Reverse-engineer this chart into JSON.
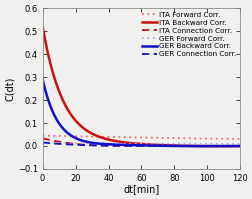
{
  "title": "",
  "xlabel": "dt[min]",
  "ylabel": "C(dt)",
  "xlim": [
    0,
    120
  ],
  "ylim": [
    -0.1,
    0.6
  ],
  "yticks": [
    -0.1,
    0.0,
    0.1,
    0.2,
    0.3,
    0.4,
    0.5,
    0.6
  ],
  "xticks": [
    0,
    20,
    40,
    60,
    80,
    100,
    120
  ],
  "background_color": "#f0f0ee",
  "lines": [
    {
      "label": "ITA Forward Corr.",
      "color": "#e87070",
      "linestyle": "dotted",
      "linewidth": 1.3,
      "type": "forward_ita",
      "a": 0.045,
      "tau": 300,
      "c": 0.0,
      "osc_amp": 0.0,
      "osc_freq": 0.0,
      "osc_tau": 1.0
    },
    {
      "label": "ITA Backward Corr.",
      "color": "#cc1111",
      "linestyle": "solid",
      "linewidth": 1.8,
      "type": "backward_ita",
      "a": 0.535,
      "tau": 13.0,
      "c": 0.0,
      "osc_amp": -0.015,
      "osc_freq": 0.055,
      "osc_tau": 0.025
    },
    {
      "label": "ITA Connection Corr.",
      "color": "#cc1111",
      "linestyle": "dashed",
      "linewidth": 1.3,
      "type": "connection_ita",
      "a": 0.025,
      "tau": 18.0,
      "c": 0.0,
      "osc_amp": 0.008,
      "osc_freq": 0.07,
      "osc_tau": 0.04
    },
    {
      "label": "GER Forward Corr.",
      "color": "#aaaaee",
      "linestyle": "dotted",
      "linewidth": 1.3,
      "type": "forward_ger",
      "a": 0.012,
      "tau": 400,
      "c": 0.0,
      "osc_amp": 0.0,
      "osc_freq": 0.0,
      "osc_tau": 1.0
    },
    {
      "label": "GER Backward Corr.",
      "color": "#1111cc",
      "linestyle": "solid",
      "linewidth": 1.8,
      "type": "backward_ger",
      "a": 0.3,
      "tau": 9.5,
      "c": 0.0,
      "osc_amp": -0.01,
      "osc_freq": 0.06,
      "osc_tau": 0.025
    },
    {
      "label": "GER Connection Corr.",
      "color": "#1111cc",
      "linestyle": "dashed",
      "linewidth": 1.3,
      "type": "connection_ger",
      "a": 0.012,
      "tau": 22.0,
      "c": 0.0,
      "osc_amp": 0.003,
      "osc_freq": 0.07,
      "osc_tau": 0.04
    }
  ],
  "legend_fontsize": 5.2,
  "axis_fontsize": 7,
  "tick_fontsize": 6
}
